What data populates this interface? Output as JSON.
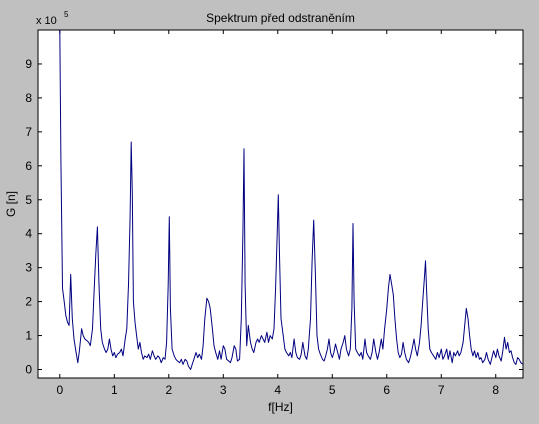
{
  "chart_data": {
    "type": "line",
    "title": "Spektrum před odstraněním",
    "xlabel": "f[Hz]",
    "ylabel": "G [n]",
    "exponent_label": "x 10",
    "exponent_power": "5",
    "xlim": [
      -0.4,
      8.5
    ],
    "ylim": [
      -0.25,
      10.0
    ],
    "xticks": [
      0,
      1,
      2,
      3,
      4,
      5,
      6,
      7,
      8
    ],
    "yticks": [
      0,
      1,
      2,
      3,
      4,
      5,
      6,
      7,
      8,
      9
    ],
    "grid": false,
    "line_color": "#000080",
    "series": [
      {
        "values": [
          [
            0.0,
            10.0
          ],
          [
            0.02,
            6.2
          ],
          [
            0.05,
            2.4
          ],
          [
            0.08,
            2.0
          ],
          [
            0.11,
            1.6
          ],
          [
            0.14,
            1.4
          ],
          [
            0.17,
            1.3
          ],
          [
            0.2,
            2.8
          ],
          [
            0.23,
            1.5
          ],
          [
            0.26,
            0.9
          ],
          [
            0.3,
            0.5
          ],
          [
            0.33,
            0.2
          ],
          [
            0.36,
            0.55
          ],
          [
            0.4,
            1.2
          ],
          [
            0.43,
            1.0
          ],
          [
            0.46,
            0.9
          ],
          [
            0.5,
            0.85
          ],
          [
            0.53,
            0.8
          ],
          [
            0.56,
            0.7
          ],
          [
            0.6,
            1.2
          ],
          [
            0.63,
            2.3
          ],
          [
            0.66,
            3.4
          ],
          [
            0.69,
            4.2
          ],
          [
            0.72,
            2.5
          ],
          [
            0.75,
            1.2
          ],
          [
            0.78,
            0.8
          ],
          [
            0.82,
            0.6
          ],
          [
            0.85,
            0.5
          ],
          [
            0.88,
            0.6
          ],
          [
            0.91,
            0.9
          ],
          [
            0.94,
            0.6
          ],
          [
            0.97,
            0.4
          ],
          [
            1.0,
            0.5
          ],
          [
            1.03,
            0.35
          ],
          [
            1.06,
            0.45
          ],
          [
            1.1,
            0.5
          ],
          [
            1.13,
            0.6
          ],
          [
            1.16,
            0.4
          ],
          [
            1.2,
            0.9
          ],
          [
            1.23,
            1.2
          ],
          [
            1.26,
            2.5
          ],
          [
            1.29,
            4.5
          ],
          [
            1.31,
            6.7
          ],
          [
            1.33,
            5.2
          ],
          [
            1.35,
            2.0
          ],
          [
            1.38,
            1.4
          ],
          [
            1.41,
            1.0
          ],
          [
            1.44,
            0.6
          ],
          [
            1.47,
            0.8
          ],
          [
            1.5,
            0.5
          ],
          [
            1.53,
            0.3
          ],
          [
            1.56,
            0.4
          ],
          [
            1.6,
            0.35
          ],
          [
            1.63,
            0.45
          ],
          [
            1.66,
            0.3
          ],
          [
            1.7,
            0.55
          ],
          [
            1.73,
            0.4
          ],
          [
            1.76,
            0.3
          ],
          [
            1.8,
            0.4
          ],
          [
            1.83,
            0.35
          ],
          [
            1.86,
            0.2
          ],
          [
            1.9,
            0.35
          ],
          [
            1.93,
            0.3
          ],
          [
            1.96,
            0.8
          ],
          [
            1.99,
            2.5
          ],
          [
            2.01,
            4.5
          ],
          [
            2.03,
            1.8
          ],
          [
            2.06,
            0.6
          ],
          [
            2.1,
            0.4
          ],
          [
            2.13,
            0.3
          ],
          [
            2.16,
            0.25
          ],
          [
            2.2,
            0.2
          ],
          [
            2.23,
            0.3
          ],
          [
            2.26,
            0.15
          ],
          [
            2.3,
            0.3
          ],
          [
            2.33,
            0.25
          ],
          [
            2.36,
            0.1
          ],
          [
            2.4,
            0.0
          ],
          [
            2.43,
            0.15
          ],
          [
            2.46,
            0.3
          ],
          [
            2.5,
            0.5
          ],
          [
            2.53,
            0.35
          ],
          [
            2.56,
            0.45
          ],
          [
            2.6,
            0.3
          ],
          [
            2.63,
            0.7
          ],
          [
            2.66,
            1.5
          ],
          [
            2.7,
            2.1
          ],
          [
            2.73,
            2.0
          ],
          [
            2.76,
            1.8
          ],
          [
            2.8,
            1.2
          ],
          [
            2.83,
            0.7
          ],
          [
            2.86,
            0.5
          ],
          [
            2.9,
            0.3
          ],
          [
            2.93,
            0.55
          ],
          [
            2.96,
            0.3
          ],
          [
            3.0,
            0.7
          ],
          [
            3.03,
            0.6
          ],
          [
            3.06,
            0.3
          ],
          [
            3.1,
            0.25
          ],
          [
            3.13,
            0.2
          ],
          [
            3.16,
            0.35
          ],
          [
            3.2,
            0.7
          ],
          [
            3.23,
            0.6
          ],
          [
            3.26,
            0.25
          ],
          [
            3.3,
            0.3
          ],
          [
            3.33,
            1.5
          ],
          [
            3.36,
            4.0
          ],
          [
            3.38,
            6.5
          ],
          [
            3.4,
            2.5
          ],
          [
            3.43,
            0.7
          ],
          [
            3.46,
            1.3
          ],
          [
            3.5,
            0.8
          ],
          [
            3.53,
            0.6
          ],
          [
            3.56,
            0.5
          ],
          [
            3.6,
            0.8
          ],
          [
            3.63,
            0.9
          ],
          [
            3.66,
            0.8
          ],
          [
            3.7,
            1.0
          ],
          [
            3.73,
            0.9
          ],
          [
            3.76,
            0.8
          ],
          [
            3.8,
            1.1
          ],
          [
            3.83,
            0.8
          ],
          [
            3.86,
            1.0
          ],
          [
            3.9,
            0.9
          ],
          [
            3.93,
            1.2
          ],
          [
            3.96,
            2.4
          ],
          [
            3.99,
            4.0
          ],
          [
            4.01,
            5.15
          ],
          [
            4.03,
            3.5
          ],
          [
            4.06,
            1.5
          ],
          [
            4.1,
            1.0
          ],
          [
            4.13,
            0.6
          ],
          [
            4.16,
            0.5
          ],
          [
            4.2,
            0.4
          ],
          [
            4.23,
            0.5
          ],
          [
            4.26,
            0.35
          ],
          [
            4.3,
            0.9
          ],
          [
            4.33,
            0.5
          ],
          [
            4.36,
            0.35
          ],
          [
            4.4,
            0.3
          ],
          [
            4.43,
            0.45
          ],
          [
            4.46,
            0.8
          ],
          [
            4.5,
            0.4
          ],
          [
            4.53,
            0.3
          ],
          [
            4.56,
            0.6
          ],
          [
            4.6,
            1.5
          ],
          [
            4.63,
            3.2
          ],
          [
            4.66,
            4.4
          ],
          [
            4.69,
            2.8
          ],
          [
            4.72,
            1.0
          ],
          [
            4.75,
            0.6
          ],
          [
            4.78,
            0.45
          ],
          [
            4.82,
            0.3
          ],
          [
            4.85,
            0.25
          ],
          [
            4.88,
            0.4
          ],
          [
            4.91,
            0.6
          ],
          [
            4.94,
            0.9
          ],
          [
            4.97,
            0.5
          ],
          [
            5.0,
            0.35
          ],
          [
            5.03,
            0.5
          ],
          [
            5.06,
            0.75
          ],
          [
            5.1,
            0.5
          ],
          [
            5.13,
            0.3
          ],
          [
            5.16,
            0.6
          ],
          [
            5.2,
            0.8
          ],
          [
            5.23,
            1.0
          ],
          [
            5.26,
            0.6
          ],
          [
            5.3,
            0.4
          ],
          [
            5.33,
            0.6
          ],
          [
            5.36,
            1.8
          ],
          [
            5.38,
            4.3
          ],
          [
            5.4,
            2.0
          ],
          [
            5.43,
            0.6
          ],
          [
            5.46,
            0.5
          ],
          [
            5.5,
            0.4
          ],
          [
            5.53,
            0.5
          ],
          [
            5.56,
            0.3
          ],
          [
            5.6,
            0.9
          ],
          [
            5.63,
            0.5
          ],
          [
            5.66,
            0.4
          ],
          [
            5.7,
            0.3
          ],
          [
            5.73,
            0.5
          ],
          [
            5.76,
            0.9
          ],
          [
            5.8,
            0.5
          ],
          [
            5.83,
            0.3
          ],
          [
            5.86,
            0.5
          ],
          [
            5.9,
            0.9
          ],
          [
            5.93,
            0.6
          ],
          [
            5.96,
            1.2
          ],
          [
            6.0,
            1.8
          ],
          [
            6.03,
            2.4
          ],
          [
            6.06,
            2.8
          ],
          [
            6.09,
            2.5
          ],
          [
            6.12,
            2.2
          ],
          [
            6.15,
            1.5
          ],
          [
            6.18,
            0.9
          ],
          [
            6.21,
            0.5
          ],
          [
            6.24,
            0.35
          ],
          [
            6.27,
            0.45
          ],
          [
            6.3,
            0.8
          ],
          [
            6.33,
            0.5
          ],
          [
            6.36,
            0.3
          ],
          [
            6.4,
            0.2
          ],
          [
            6.43,
            0.35
          ],
          [
            6.46,
            0.55
          ],
          [
            6.5,
            0.9
          ],
          [
            6.53,
            0.6
          ],
          [
            6.56,
            0.4
          ],
          [
            6.6,
            0.8
          ],
          [
            6.63,
            1.3
          ],
          [
            6.66,
            2.0
          ],
          [
            6.69,
            2.7
          ],
          [
            6.71,
            3.2
          ],
          [
            6.73,
            2.4
          ],
          [
            6.76,
            1.2
          ],
          [
            6.79,
            0.6
          ],
          [
            6.82,
            0.5
          ],
          [
            6.86,
            0.4
          ],
          [
            6.9,
            0.3
          ],
          [
            6.93,
            0.5
          ],
          [
            6.96,
            0.35
          ],
          [
            7.0,
            0.6
          ],
          [
            7.03,
            0.3
          ],
          [
            7.06,
            0.4
          ],
          [
            7.1,
            0.6
          ],
          [
            7.13,
            0.3
          ],
          [
            7.16,
            0.55
          ],
          [
            7.2,
            0.2
          ],
          [
            7.23,
            0.5
          ],
          [
            7.26,
            0.4
          ],
          [
            7.3,
            0.55
          ],
          [
            7.33,
            0.4
          ],
          [
            7.36,
            0.5
          ],
          [
            7.4,
            0.8
          ],
          [
            7.43,
            1.3
          ],
          [
            7.46,
            1.8
          ],
          [
            7.49,
            1.5
          ],
          [
            7.52,
            1.0
          ],
          [
            7.55,
            0.6
          ],
          [
            7.58,
            0.4
          ],
          [
            7.61,
            0.55
          ],
          [
            7.64,
            0.35
          ],
          [
            7.67,
            0.5
          ],
          [
            7.7,
            0.3
          ],
          [
            7.73,
            0.35
          ],
          [
            7.76,
            0.2
          ],
          [
            7.8,
            0.3
          ],
          [
            7.83,
            0.5
          ],
          [
            7.86,
            0.3
          ],
          [
            7.9,
            0.15
          ],
          [
            7.93,
            0.35
          ],
          [
            7.96,
            0.55
          ],
          [
            8.0,
            0.35
          ],
          [
            8.03,
            0.6
          ],
          [
            8.06,
            0.4
          ],
          [
            8.1,
            0.25
          ],
          [
            8.13,
            0.55
          ],
          [
            8.16,
            0.95
          ],
          [
            8.19,
            0.6
          ],
          [
            8.22,
            0.8
          ],
          [
            8.25,
            0.5
          ],
          [
            8.28,
            0.55
          ],
          [
            8.31,
            0.35
          ],
          [
            8.34,
            0.2
          ],
          [
            8.37,
            0.15
          ],
          [
            8.4,
            0.35
          ],
          [
            8.43,
            0.3
          ],
          [
            8.46,
            0.2
          ],
          [
            8.5,
            0.15
          ]
        ]
      }
    ]
  }
}
